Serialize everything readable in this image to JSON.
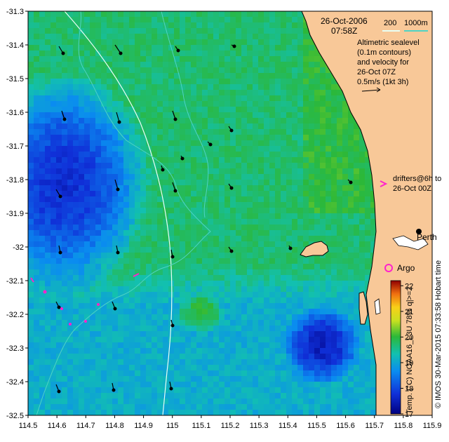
{
  "header": {
    "date": "26-Oct-2006",
    "time": "07:58Z"
  },
  "bathymetry_legend": {
    "depth_200": "200",
    "depth_1000": "1000m",
    "contour_color": "#4fd3c4"
  },
  "altimetry_note": {
    "lines": [
      "Altimetric sealevel",
      "(0.1m contours)",
      "and velocity for",
      "26-Oct 07Z"
    ],
    "speed_scale": "0.5m/s (1kt 3h)"
  },
  "drifters_note": {
    "line1": "drifters@6h to",
    "line2": "26-Oct 00Z",
    "marker_color": "#ff22cc"
  },
  "argo": {
    "label": "Argo",
    "color": "#ff22cc"
  },
  "places": {
    "perth": "Perth"
  },
  "colorbar": {
    "ticks": [
      "22",
      "21",
      "20",
      "19",
      "18",
      "17"
    ],
    "min": 17,
    "max": 22.2,
    "title": "Temp. (°C) NOAA16_L3U 78% q|>=2"
  },
  "credit": "© IMOS 30-Mar-2015 07:33:58 Hobart time",
  "axes": {
    "x_ticks": [
      "114.5",
      "114.6",
      "114.7",
      "114.8",
      "114.9",
      "115",
      "115.1",
      "115.2",
      "115.3",
      "115.4",
      "115.5",
      "115.6",
      "115.7",
      "115.8",
      "115.9"
    ],
    "y_ticks": [
      "-31.3",
      "-31.4",
      "-31.5",
      "-31.6",
      "-31.7",
      "-31.8",
      "-31.9",
      "-32",
      "-32.1",
      "-32.2",
      "-32.3",
      "-32.4",
      "-32.5"
    ],
    "lon_range": [
      114.5,
      115.9
    ],
    "lat_range": [
      -32.5,
      -31.3
    ]
  },
  "colors": {
    "land": "#f8c898",
    "no_data": "#ffffff",
    "coast": "#000000"
  }
}
